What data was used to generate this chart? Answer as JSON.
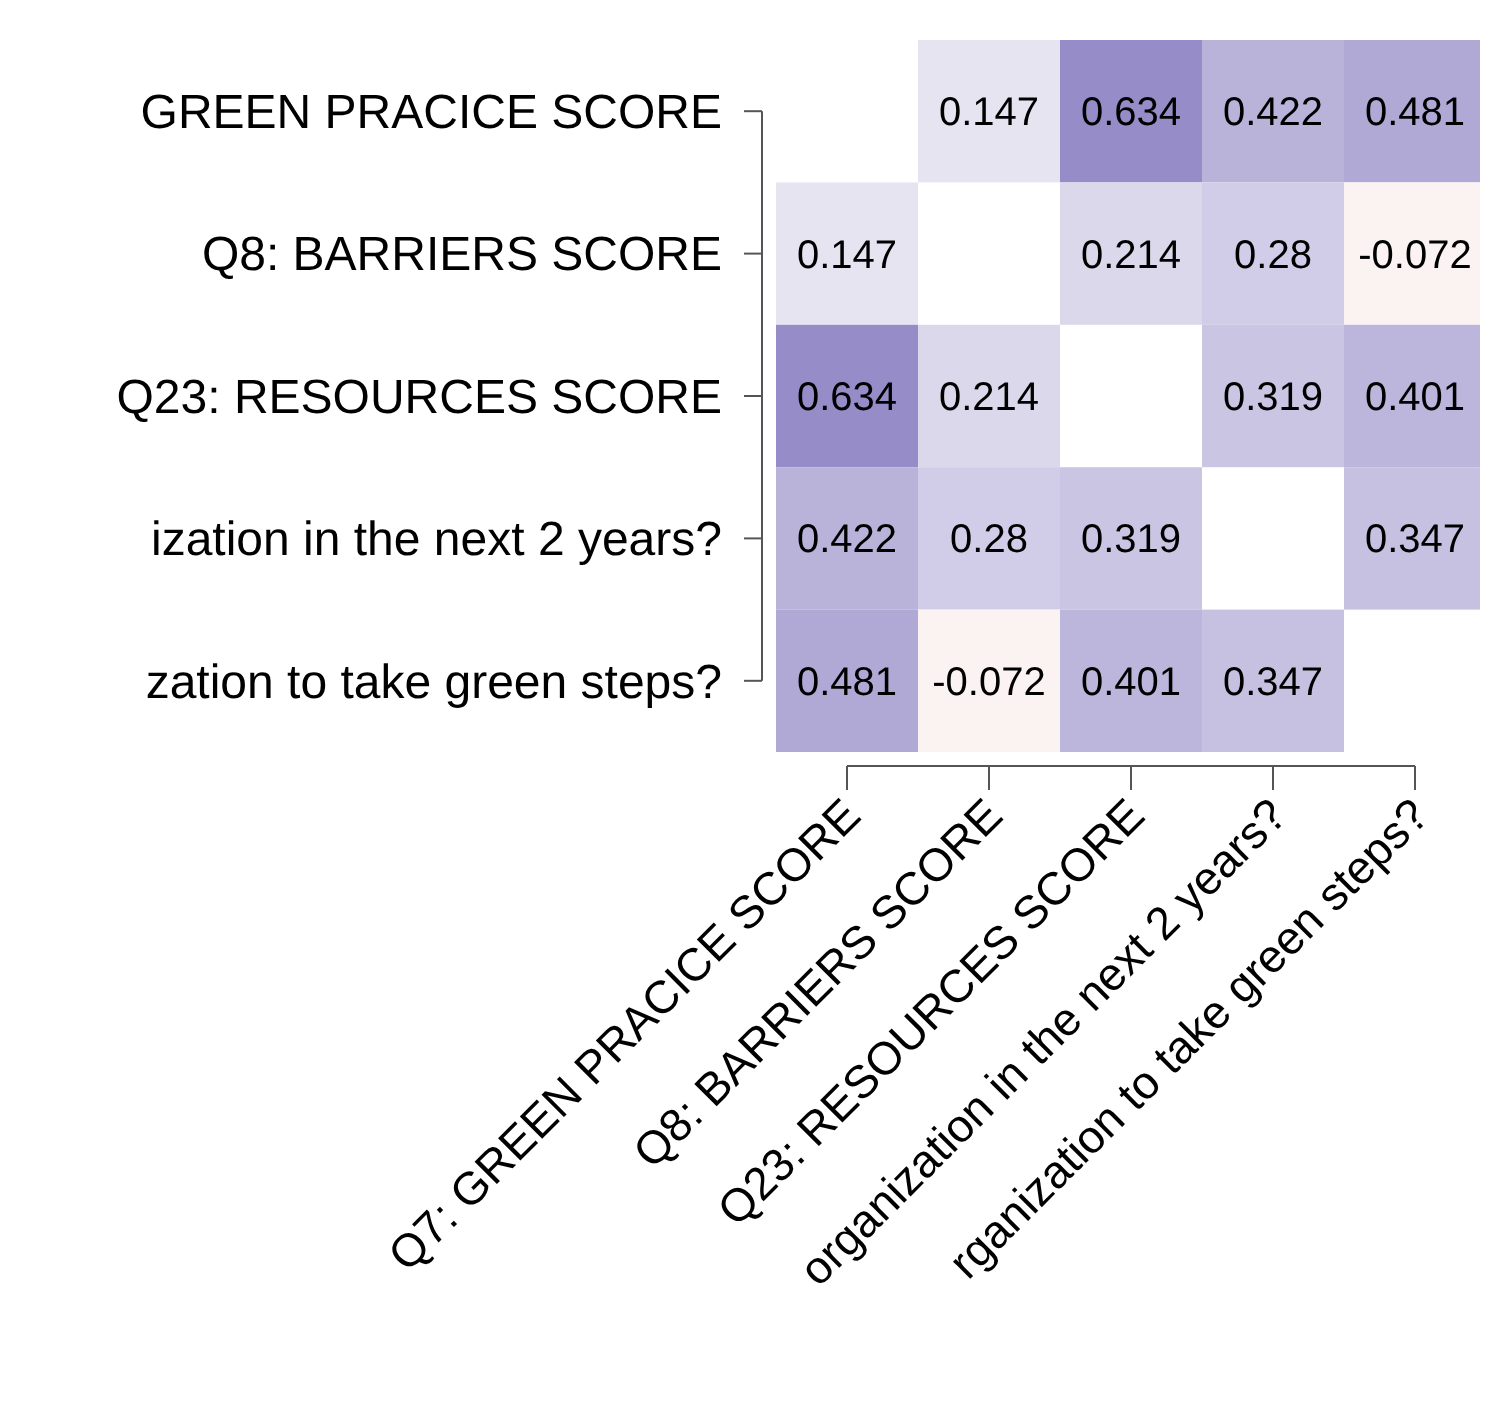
{
  "chart_data": {
    "type": "heatmap",
    "categories": [
      "Q7: GREEN PRACICE SCORE",
      "Q8: BARRIERS SCORE",
      "Q23: RESOURCES SCORE",
      "organization in the next 2 years?",
      "rganization to take green steps?"
    ],
    "y_categories": [
      "GREEN PRACICE SCORE",
      "Q8: BARRIERS SCORE",
      "Q23: RESOURCES SCORE",
      "ization in the next 2 years?",
      "zation to take green steps?"
    ],
    "cells": [
      [
        null,
        0.147,
        0.634,
        0.422,
        0.481
      ],
      [
        0.147,
        null,
        0.214,
        0.28,
        -0.072
      ],
      [
        0.634,
        0.214,
        null,
        0.319,
        0.401
      ],
      [
        0.422,
        0.28,
        0.319,
        null,
        0.347
      ],
      [
        0.481,
        -0.072,
        0.401,
        0.347,
        null
      ]
    ],
    "data_labels": true
  }
}
